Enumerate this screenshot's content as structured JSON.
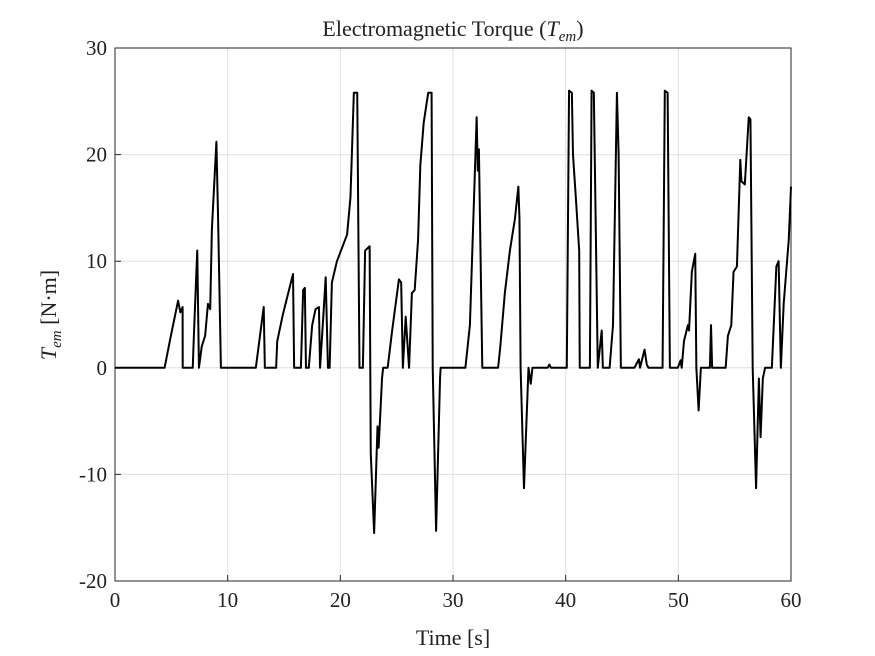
{
  "chart_data": {
    "type": "line",
    "title": [
      "Electromagnetic Torque (",
      "T",
      "em",
      ")"
    ],
    "xlabel": "Time [s]",
    "ylabel": [
      "T",
      "em",
      " [N·m]"
    ],
    "xlim": [
      0,
      60
    ],
    "ylim": [
      -20,
      30
    ],
    "xticks": [
      0,
      10,
      20,
      30,
      40,
      50,
      60
    ],
    "yticks": [
      -20,
      -10,
      0,
      10,
      20,
      30
    ],
    "grid": true,
    "x": [
      0,
      4.4,
      4.9,
      5.6,
      5.8,
      6.0,
      6.01,
      6.9,
      7.0,
      7.3,
      7.45,
      7.7,
      8.0,
      8.25,
      8.45,
      8.6,
      9.0,
      9.15,
      9.4,
      12.5,
      13.2,
      13.3,
      14.3,
      14.4,
      14.9,
      15.8,
      15.9,
      16.5,
      16.7,
      16.85,
      16.95,
      17.2,
      17.5,
      17.8,
      18.1,
      18.2,
      18.5,
      18.7,
      18.9,
      19.05,
      19.25,
      19.7,
      20.6,
      20.9,
      21.2,
      21.5,
      21.7,
      22.0,
      22.2,
      22.6,
      22.7,
      23.0,
      23.3,
      23.4,
      23.7,
      23.8,
      24.2,
      24.6,
      25.2,
      25.4,
      25.55,
      25.8,
      26.1,
      26.35,
      26.6,
      26.9,
      27.1,
      27.4,
      27.8,
      28.1,
      28.2,
      28.5,
      28.85,
      28.9,
      31.1,
      31.5,
      32.1,
      32.2,
      32.3,
      32.6,
      34.0,
      34.2,
      34.6,
      35.05,
      35.5,
      35.8,
      35.9,
      36.0,
      36.3,
      36.7,
      36.9,
      37.05,
      38.4,
      38.55,
      38.7,
      40.1,
      40.3,
      40.55,
      40.65,
      40.9,
      41.2,
      41.25,
      42.15,
      42.3,
      42.5,
      42.85,
      43.2,
      43.3,
      43.9,
      44.2,
      44.55,
      44.7,
      44.9,
      46.1,
      46.5,
      46.6,
      47.0,
      47.2,
      47.35,
      48.6,
      48.8,
      49.05,
      49.25,
      49.95,
      50.2,
      50.3,
      50.5,
      50.85,
      50.95,
      51.2,
      51.5,
      51.6,
      51.8,
      52.0,
      52.8,
      52.9,
      53.0,
      54.2,
      54.4,
      54.7,
      54.9,
      55.2,
      55.5,
      55.6,
      55.9,
      56.25,
      56.4,
      56.6,
      56.9,
      57.15,
      57.3,
      57.5,
      57.7,
      58.3,
      58.7,
      58.9,
      59.1,
      59.35,
      59.8,
      60
    ],
    "series": [
      {
        "color": "#000000",
        "values": [
          0,
          0,
          2.7,
          6.3,
          5.2,
          5.7,
          0,
          0,
          3,
          11,
          0,
          2,
          3,
          6,
          5.5,
          13,
          21.2,
          14,
          0,
          0,
          5.7,
          0,
          0,
          2.5,
          5,
          8.8,
          0,
          0,
          7.3,
          7.5,
          0,
          0,
          4,
          5.5,
          5.7,
          0,
          5,
          8.5,
          0,
          0,
          8,
          10,
          12.5,
          16,
          25.8,
          25.8,
          0,
          0,
          11,
          11.4,
          -8,
          -15.5,
          -5.5,
          -7.5,
          -1,
          0,
          0,
          3.5,
          8.3,
          8,
          0,
          4.8,
          0,
          7,
          7.3,
          12,
          19,
          23,
          25.8,
          25.8,
          0,
          -15.3,
          -1,
          0,
          0,
          4,
          23.5,
          18.5,
          20.5,
          0,
          0,
          2,
          7,
          11,
          14,
          17,
          14,
          0,
          -11.3,
          0,
          -1.5,
          0,
          0,
          0.3,
          0,
          0,
          26,
          25.8,
          20,
          16,
          11,
          0,
          0,
          26,
          25.8,
          0,
          3.5,
          0,
          0,
          4,
          25.8,
          20,
          0,
          0,
          0.8,
          0,
          1.7,
          0.3,
          0,
          0,
          26,
          25.8,
          0,
          0,
          0.7,
          0,
          2.5,
          4,
          3.5,
          9,
          10.7,
          0,
          -4,
          0,
          0,
          4,
          0,
          0,
          3,
          4,
          9,
          9.5,
          19.5,
          17.5,
          17.2,
          23.5,
          23.3,
          0,
          -11.3,
          -1,
          -6.5,
          -1,
          0,
          0,
          9.5,
          10,
          0,
          6,
          12,
          17
        ]
      }
    ]
  }
}
